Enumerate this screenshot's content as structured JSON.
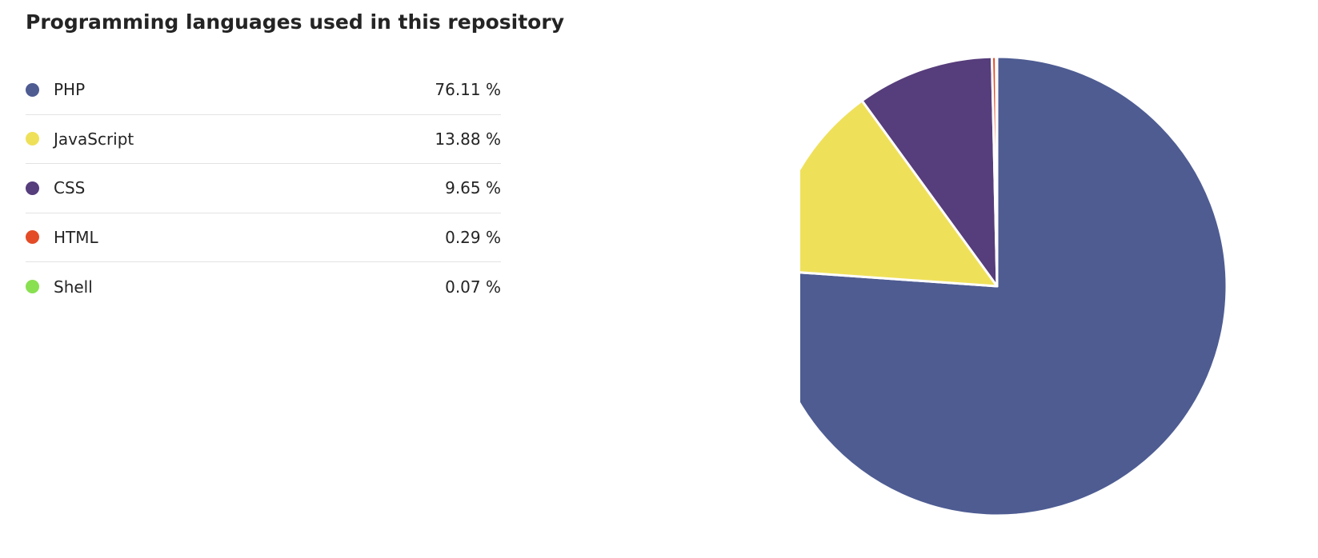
{
  "chart_data": {
    "type": "pie",
    "title": "Programming languages used in this repository",
    "categories": [
      "PHP",
      "JavaScript",
      "CSS",
      "HTML",
      "Shell"
    ],
    "values": [
      76.11,
      13.88,
      9.65,
      0.29,
      0.07
    ],
    "value_labels": [
      "76.11 %",
      "13.88 %",
      "9.65 %",
      "0.29 %",
      "0.07 %"
    ],
    "colors": [
      "#4e5c92",
      "#efe05a",
      "#563d7b",
      "#e34c26",
      "#89e051"
    ],
    "start": "top, clockwise",
    "legend_placement": "left"
  }
}
